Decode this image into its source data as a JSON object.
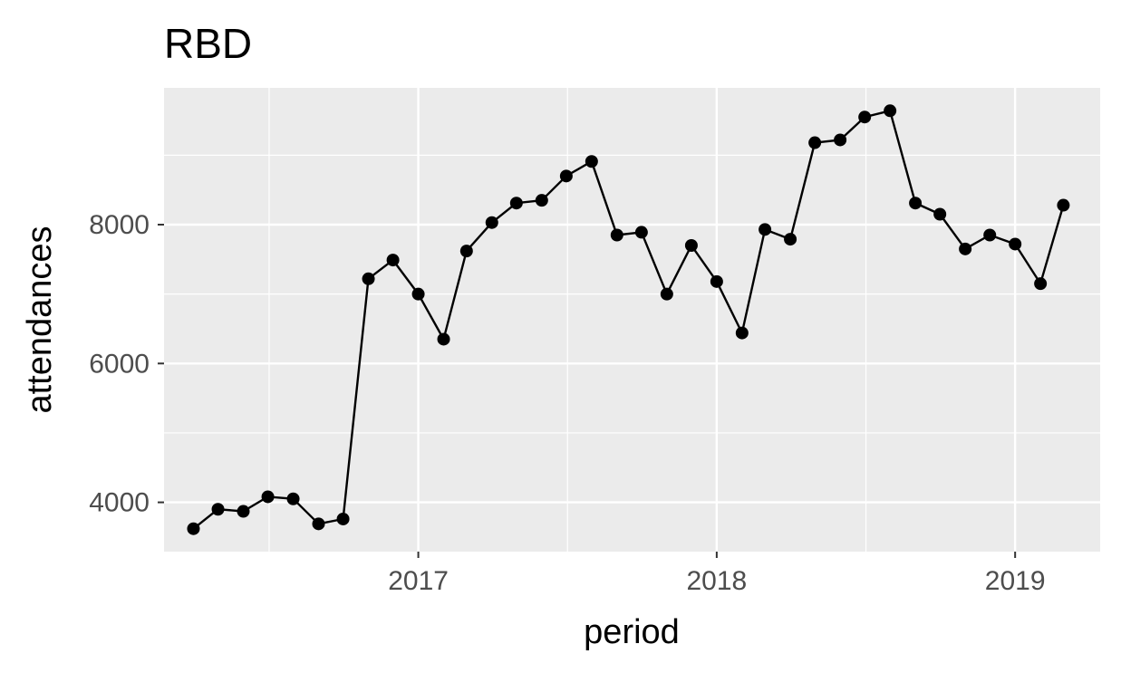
{
  "chart_data": {
    "type": "line",
    "title": "RBD",
    "xlabel": "period",
    "ylabel": "attendances",
    "x": [
      "2016-04",
      "2016-05",
      "2016-06",
      "2016-07",
      "2016-08",
      "2016-09",
      "2016-10",
      "2016-11",
      "2016-12",
      "2017-01",
      "2017-02",
      "2017-03",
      "2017-04",
      "2017-05",
      "2017-06",
      "2017-07",
      "2017-08",
      "2017-09",
      "2017-10",
      "2017-11",
      "2017-12",
      "2018-01",
      "2018-02",
      "2018-03",
      "2018-04",
      "2018-05",
      "2018-06",
      "2018-07",
      "2018-08",
      "2018-09",
      "2018-10",
      "2018-11",
      "2018-12",
      "2019-01",
      "2019-02",
      "2019-03"
    ],
    "series": [
      {
        "values": [
          3620,
          3900,
          3870,
          4080,
          4050,
          3690,
          3760,
          7220,
          7490,
          7000,
          6350,
          7620,
          8030,
          8310,
          8350,
          8700,
          8910,
          7850,
          7890,
          7000,
          7700,
          7180,
          6440,
          7930,
          7790,
          9180,
          9220,
          9550,
          9640,
          8310,
          8150,
          7650,
          7850,
          7720,
          7150,
          8280
        ],
        "color": "#000000"
      }
    ],
    "xticks": [
      {
        "date": "2017-01",
        "label": "2017"
      },
      {
        "date": "2018-01",
        "label": "2018"
      },
      {
        "date": "2019-01",
        "label": "2019"
      }
    ],
    "yticks": [
      4000,
      6000,
      8000
    ],
    "ylim": [
      3290,
      9970
    ],
    "xlim": [
      "2016-02-25",
      "2019-04-15"
    ],
    "grid": true,
    "panel_color": "#ebebeb",
    "grid_color": "#ffffff",
    "legend": "none"
  }
}
